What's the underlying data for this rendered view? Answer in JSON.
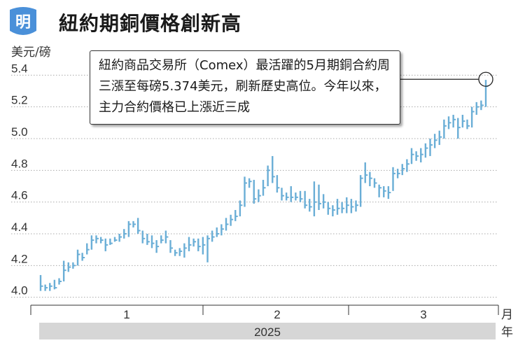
{
  "logo": {
    "text": "明",
    "color": "#4a90d9"
  },
  "title": "紐約期銅價格創新高",
  "callout": "紐約商品交易所（Comex）最活躍的5月期銅合約周三漲至每磅5.374美元，刷新歷史高位。今年以來，主力合約價格已上漲近三成",
  "axis": {
    "y_unit": "美元/磅",
    "x_unit_month": "月",
    "x_unit_year": "年",
    "year": "2025"
  },
  "colors": {
    "bar": "#6aaed6",
    "grid": "#aaaaaa",
    "year_band": "#d6d6d6"
  },
  "chart_data": {
    "type": "ohlc",
    "ylim": [
      3.95,
      5.45
    ],
    "y_ticks": [
      4.0,
      4.2,
      4.4,
      4.6,
      4.8,
      5.0,
      5.2,
      5.4
    ],
    "y_tick_labels": [
      "4.0",
      "4.2",
      "4.4",
      "4.6",
      "4.8",
      "5.0",
      "5.2",
      "5.4"
    ],
    "x_month_labels": [
      "1",
      "2",
      "3"
    ],
    "peak_value": 5.374,
    "sessions": [
      {
        "h": 4.14,
        "l": 4.04,
        "c": 4.07
      },
      {
        "h": 4.08,
        "l": 4.04,
        "c": 4.06
      },
      {
        "h": 4.09,
        "l": 4.04,
        "c": 4.07
      },
      {
        "h": 4.11,
        "l": 4.05,
        "c": 4.06
      },
      {
        "h": 4.12,
        "l": 4.08,
        "c": 4.1
      },
      {
        "h": 4.23,
        "l": 4.1,
        "c": 4.17
      },
      {
        "h": 4.22,
        "l": 4.16,
        "c": 4.19
      },
      {
        "h": 4.22,
        "l": 4.18,
        "c": 4.2
      },
      {
        "h": 4.3,
        "l": 4.2,
        "c": 4.27
      },
      {
        "h": 4.28,
        "l": 4.23,
        "c": 4.25
      },
      {
        "h": 4.34,
        "l": 4.27,
        "c": 4.3
      },
      {
        "h": 4.39,
        "l": 4.3,
        "c": 4.36
      },
      {
        "h": 4.39,
        "l": 4.34,
        "c": 4.37
      },
      {
        "h": 4.38,
        "l": 4.34,
        "c": 4.36
      },
      {
        "h": 4.37,
        "l": 4.29,
        "c": 4.33
      },
      {
        "h": 4.37,
        "l": 4.33,
        "c": 4.34
      },
      {
        "h": 4.38,
        "l": 4.35,
        "c": 4.36
      },
      {
        "h": 4.4,
        "l": 4.35,
        "c": 4.38
      },
      {
        "h": 4.43,
        "l": 4.37,
        "c": 4.4
      },
      {
        "h": 4.48,
        "l": 4.38,
        "c": 4.46
      },
      {
        "h": 4.48,
        "l": 4.44,
        "c": 4.46
      },
      {
        "h": 4.5,
        "l": 4.4,
        "c": 4.42
      },
      {
        "h": 4.42,
        "l": 4.34,
        "c": 4.37
      },
      {
        "h": 4.4,
        "l": 4.33,
        "c": 4.35
      },
      {
        "h": 4.39,
        "l": 4.31,
        "c": 4.34
      },
      {
        "h": 4.36,
        "l": 4.28,
        "c": 4.32
      },
      {
        "h": 4.39,
        "l": 4.34,
        "c": 4.36
      },
      {
        "h": 4.42,
        "l": 4.34,
        "c": 4.38
      },
      {
        "h": 4.36,
        "l": 4.28,
        "c": 4.31
      },
      {
        "h": 4.3,
        "l": 4.26,
        "c": 4.28
      },
      {
        "h": 4.31,
        "l": 4.26,
        "c": 4.29
      },
      {
        "h": 4.34,
        "l": 4.25,
        "c": 4.31
      },
      {
        "h": 4.38,
        "l": 4.29,
        "c": 4.33
      },
      {
        "h": 4.37,
        "l": 4.32,
        "c": 4.35
      },
      {
        "h": 4.37,
        "l": 4.29,
        "c": 4.32
      },
      {
        "h": 4.38,
        "l": 4.27,
        "c": 4.33
      },
      {
        "h": 4.39,
        "l": 4.22,
        "c": 4.37
      },
      {
        "h": 4.42,
        "l": 4.35,
        "c": 4.38
      },
      {
        "h": 4.44,
        "l": 4.38,
        "c": 4.4
      },
      {
        "h": 4.46,
        "l": 4.39,
        "c": 4.43
      },
      {
        "h": 4.5,
        "l": 4.42,
        "c": 4.46
      },
      {
        "h": 4.52,
        "l": 4.45,
        "c": 4.49
      },
      {
        "h": 4.55,
        "l": 4.48,
        "c": 4.51
      },
      {
        "h": 4.61,
        "l": 4.51,
        "c": 4.58
      },
      {
        "h": 4.76,
        "l": 4.57,
        "c": 4.72
      },
      {
        "h": 4.75,
        "l": 4.69,
        "c": 4.73
      },
      {
        "h": 4.74,
        "l": 4.59,
        "c": 4.62
      },
      {
        "h": 4.68,
        "l": 4.6,
        "c": 4.64
      },
      {
        "h": 4.74,
        "l": 4.64,
        "c": 4.69
      },
      {
        "h": 4.83,
        "l": 4.7,
        "c": 4.8
      },
      {
        "h": 4.89,
        "l": 4.72,
        "c": 4.76
      },
      {
        "h": 4.77,
        "l": 4.66,
        "c": 4.69
      },
      {
        "h": 4.69,
        "l": 4.61,
        "c": 4.64
      },
      {
        "h": 4.66,
        "l": 4.61,
        "c": 4.63
      },
      {
        "h": 4.7,
        "l": 4.6,
        "c": 4.63
      },
      {
        "h": 4.66,
        "l": 4.61,
        "c": 4.63
      },
      {
        "h": 4.67,
        "l": 4.6,
        "c": 4.62
      },
      {
        "h": 4.67,
        "l": 4.56,
        "c": 4.58
      },
      {
        "h": 4.62,
        "l": 4.54,
        "c": 4.57
      },
      {
        "h": 4.73,
        "l": 4.51,
        "c": 4.6
      },
      {
        "h": 4.71,
        "l": 4.55,
        "c": 4.59
      },
      {
        "h": 4.65,
        "l": 4.56,
        "c": 4.6
      },
      {
        "h": 4.6,
        "l": 4.52,
        "c": 4.56
      },
      {
        "h": 4.58,
        "l": 4.51,
        "c": 4.55
      },
      {
        "h": 4.62,
        "l": 4.52,
        "c": 4.56
      },
      {
        "h": 4.6,
        "l": 4.53,
        "c": 4.56
      },
      {
        "h": 4.63,
        "l": 4.53,
        "c": 4.58
      },
      {
        "h": 4.62,
        "l": 4.53,
        "c": 4.57
      },
      {
        "h": 4.61,
        "l": 4.54,
        "c": 4.58
      },
      {
        "h": 4.77,
        "l": 4.57,
        "c": 4.75
      },
      {
        "h": 4.85,
        "l": 4.72,
        "c": 4.77
      },
      {
        "h": 4.79,
        "l": 4.7,
        "c": 4.75
      },
      {
        "h": 4.75,
        "l": 4.69,
        "c": 4.72
      },
      {
        "h": 4.71,
        "l": 4.63,
        "c": 4.69
      },
      {
        "h": 4.7,
        "l": 4.63,
        "c": 4.67
      },
      {
        "h": 4.7,
        "l": 4.62,
        "c": 4.66
      },
      {
        "h": 4.82,
        "l": 4.67,
        "c": 4.78
      },
      {
        "h": 4.81,
        "l": 4.75,
        "c": 4.78
      },
      {
        "h": 4.84,
        "l": 4.77,
        "c": 4.81
      },
      {
        "h": 4.87,
        "l": 4.79,
        "c": 4.84
      },
      {
        "h": 4.94,
        "l": 4.84,
        "c": 4.9
      },
      {
        "h": 4.92,
        "l": 4.86,
        "c": 4.89
      },
      {
        "h": 4.94,
        "l": 4.85,
        "c": 4.9
      },
      {
        "h": 4.97,
        "l": 4.88,
        "c": 4.94
      },
      {
        "h": 5.0,
        "l": 4.89,
        "c": 4.96
      },
      {
        "h": 5.03,
        "l": 4.94,
        "c": 4.99
      },
      {
        "h": 5.05,
        "l": 4.96,
        "c": 5.01
      },
      {
        "h": 5.12,
        "l": 5.0,
        "c": 5.08
      },
      {
        "h": 5.14,
        "l": 5.06,
        "c": 5.1
      },
      {
        "h": 5.15,
        "l": 5.07,
        "c": 5.12
      },
      {
        "h": 5.13,
        "l": 5.0,
        "c": 5.07
      },
      {
        "h": 5.15,
        "l": 5.07,
        "c": 5.11
      },
      {
        "h": 5.12,
        "l": 5.06,
        "c": 5.08
      },
      {
        "h": 5.2,
        "l": 5.07,
        "c": 5.17
      },
      {
        "h": 5.23,
        "l": 5.15,
        "c": 5.2
      },
      {
        "h": 5.24,
        "l": 5.18,
        "c": 5.21
      },
      {
        "h": 5.37,
        "l": 5.2,
        "c": 5.33
      }
    ]
  }
}
